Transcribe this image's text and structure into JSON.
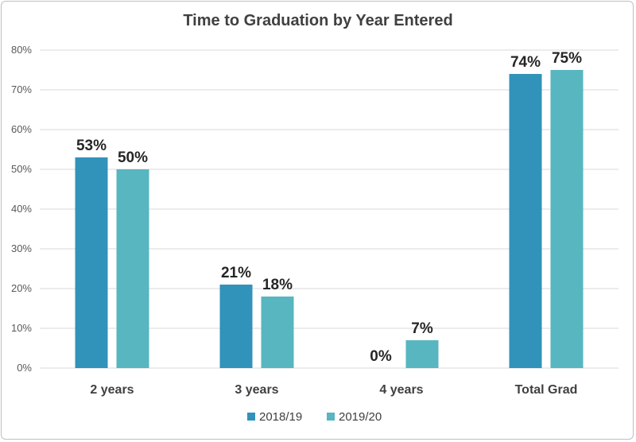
{
  "chart_data": {
    "type": "bar",
    "title": "Time to Graduation by Year Entered",
    "categories": [
      "2 years",
      "3 years",
      "4 years",
      "Total Grad"
    ],
    "series": [
      {
        "name": "2018/19",
        "values": [
          53,
          21,
          0,
          74
        ],
        "labels": [
          "53%",
          "21%",
          "0%",
          "74%"
        ],
        "color": "#3192ba"
      },
      {
        "name": "2019/20",
        "values": [
          50,
          18,
          7,
          75
        ],
        "labels": [
          "50%",
          "18%",
          "7%",
          "75%"
        ],
        "color": "#57b6bf"
      }
    ],
    "ylim": [
      0,
      80
    ],
    "yticks": [
      "0%",
      "10%",
      "20%",
      "30%",
      "40%",
      "50%",
      "60%",
      "70%",
      "80%"
    ],
    "ytick_values": [
      0,
      10,
      20,
      30,
      40,
      50,
      60,
      70,
      80
    ],
    "grid": true,
    "legend_position": "bottom",
    "gridline_color": "#d9d9d9"
  }
}
